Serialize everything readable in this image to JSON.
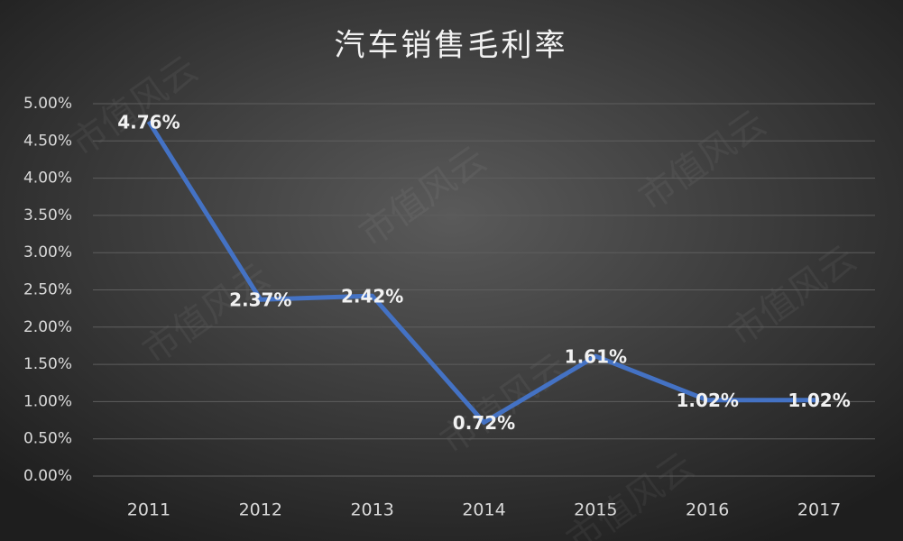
{
  "chart_data": {
    "type": "line",
    "title": "汽车销售毛利率",
    "watermark": "市值风云",
    "categories": [
      "2011",
      "2012",
      "2013",
      "2014",
      "2015",
      "2016",
      "2017"
    ],
    "series": [
      {
        "name": "汽车销售毛利率",
        "color": "#4472c4",
        "values": [
          4.76,
          2.37,
          2.42,
          0.72,
          1.61,
          1.02,
          1.02
        ],
        "value_labels": [
          "4.76%",
          "2.37%",
          "2.42%",
          "0.72%",
          "1.61%",
          "1.02%",
          "1.02%"
        ]
      }
    ],
    "ylim": [
      0,
      5
    ],
    "yticks": [
      {
        "value": 0,
        "label": "0.00%"
      },
      {
        "value": 0.5,
        "label": "0.50%"
      },
      {
        "value": 1,
        "label": "1.00%"
      },
      {
        "value": 1.5,
        "label": "1.50%"
      },
      {
        "value": 2,
        "label": "2.00%"
      },
      {
        "value": 2.5,
        "label": "2.50%"
      },
      {
        "value": 3,
        "label": "3.00%"
      },
      {
        "value": 3.5,
        "label": "3.50%"
      },
      {
        "value": 4,
        "label": "4.00%"
      },
      {
        "value": 4.5,
        "label": "4.50%"
      },
      {
        "value": 5,
        "label": "5.00%"
      }
    ],
    "grid": true
  }
}
